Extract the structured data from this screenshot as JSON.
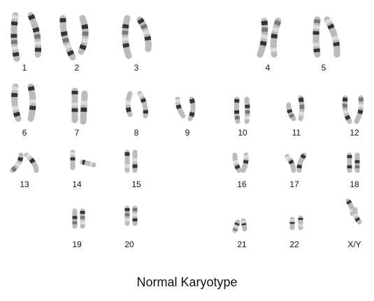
{
  "figure": {
    "caption": "Normal Karyotype"
  },
  "chromosomes": [
    {
      "label": "1"
    },
    {
      "label": "2"
    },
    {
      "label": "3"
    },
    {
      "label": "4"
    },
    {
      "label": "5"
    },
    {
      "label": "6"
    },
    {
      "label": "7"
    },
    {
      "label": "8"
    },
    {
      "label": "9"
    },
    {
      "label": "10"
    },
    {
      "label": "11"
    },
    {
      "label": "12"
    },
    {
      "label": "13"
    },
    {
      "label": "14"
    },
    {
      "label": "15"
    },
    {
      "label": "16"
    },
    {
      "label": "17"
    },
    {
      "label": "18"
    },
    {
      "label": "19"
    },
    {
      "label": "20"
    },
    {
      "label": "21"
    },
    {
      "label": "22"
    },
    {
      "label": "X/Y"
    }
  ],
  "colors": {
    "band_dark": "#333333",
    "band_mid": "#777777",
    "band_light": "#bbbbbb",
    "band_pale": "#dddddd",
    "text": "#111111"
  }
}
